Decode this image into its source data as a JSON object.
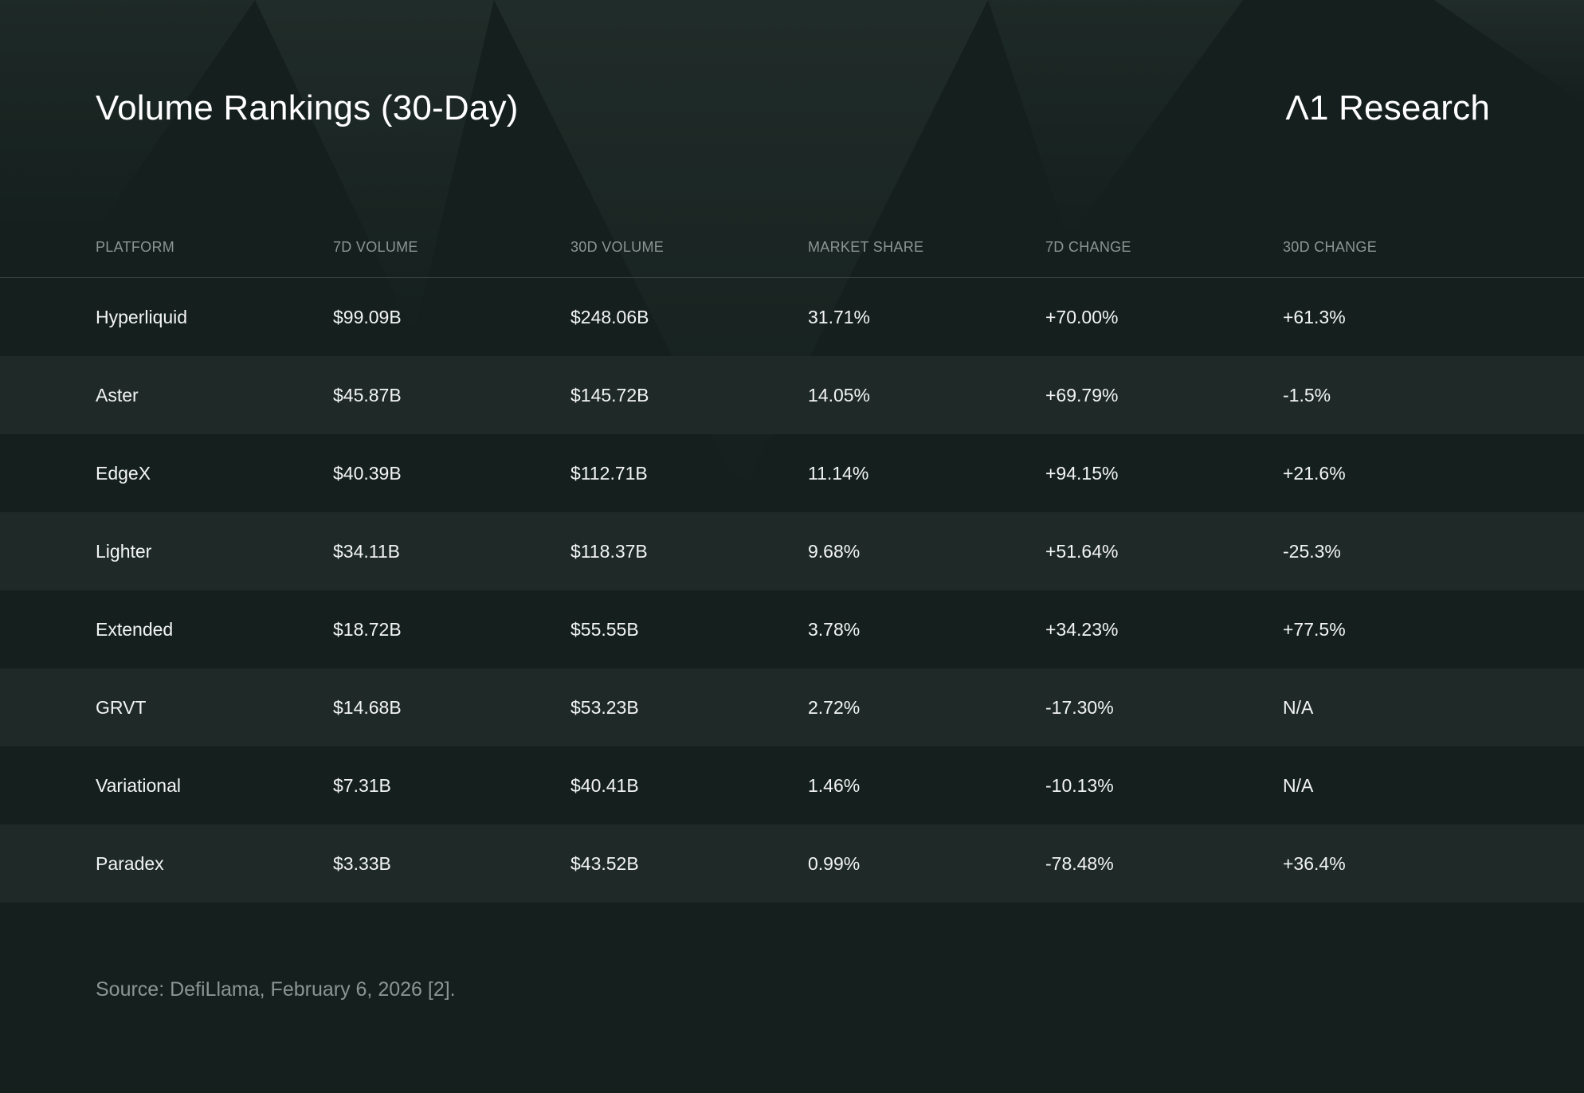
{
  "header": {
    "title": "Volume Rankings (30-Day)",
    "brand": "Λ1 Research"
  },
  "colors": {
    "background": "#15201e",
    "row_alt": "#1f2a28",
    "text": "#f2f4f3",
    "muted": "#8b9592",
    "divider": "#3a4643"
  },
  "chart_data": {
    "type": "table",
    "title": "Volume Rankings (30-Day)",
    "columns": [
      "PLATFORM",
      "7D VOLUME",
      "30D VOLUME",
      "MARKET SHARE",
      "7D CHANGE",
      "30D CHANGE"
    ],
    "rows": [
      [
        "Hyperliquid",
        "$99.09B",
        "$248.06B",
        "31.71%",
        "+70.00%",
        "+61.3%"
      ],
      [
        "Aster",
        "$45.87B",
        "$145.72B",
        "14.05%",
        "+69.79%",
        "-1.5%"
      ],
      [
        "EdgeX",
        "$40.39B",
        "$112.71B",
        "11.14%",
        "+94.15%",
        "+21.6%"
      ],
      [
        "Lighter",
        "$34.11B",
        "$118.37B",
        "9.68%",
        "+51.64%",
        "-25.3%"
      ],
      [
        "Extended",
        "$18.72B",
        "$55.55B",
        "3.78%",
        "+34.23%",
        "+77.5%"
      ],
      [
        "GRVT",
        "$14.68B",
        "$53.23B",
        "2.72%",
        "-17.30%",
        "N/A"
      ],
      [
        "Variational",
        "$7.31B",
        "$40.41B",
        "1.46%",
        "-10.13%",
        "N/A"
      ],
      [
        "Paradex",
        "$3.33B",
        "$43.52B",
        "0.99%",
        "-78.48%",
        "+36.4%"
      ]
    ]
  },
  "footer": {
    "source": "Source: DefiLlama, February 6, 2026 [2]."
  }
}
